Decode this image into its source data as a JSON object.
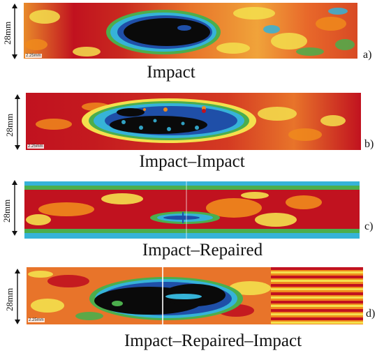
{
  "panels": [
    {
      "id": "a",
      "letter": "a)",
      "caption": "Impact",
      "dimension": "28mm",
      "scale": "2.25mm"
    },
    {
      "id": "b",
      "letter": "b)",
      "caption": "Impact–Impact",
      "dimension": "28mm",
      "scale": "2.25mm"
    },
    {
      "id": "c",
      "letter": "c)",
      "caption": "Impact–Repaired",
      "dimension": "28mm",
      "scale": ""
    },
    {
      "id": "d",
      "letter": "d)",
      "caption": "Impact–Repaired–Impact",
      "dimension": "28mm",
      "scale": "2.25mm"
    }
  ],
  "colors": {
    "red": "#c1121f",
    "orange": "#f08a1c",
    "yellow": "#f4e04d",
    "green": "#4cae4c",
    "cyan": "#36b3d8",
    "blue": "#1f4fa8",
    "black": "#0a0a0a"
  }
}
